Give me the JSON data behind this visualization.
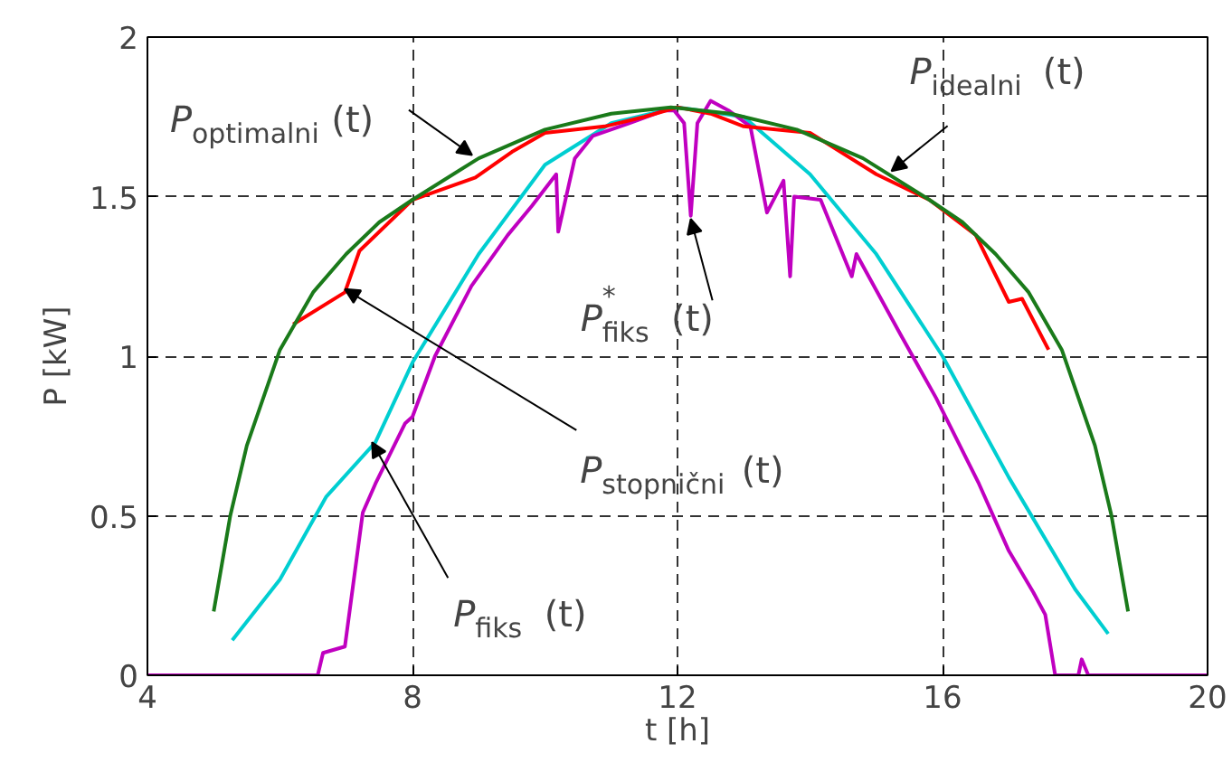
{
  "chart_data": {
    "type": "line",
    "xlabel": "t [h]",
    "ylabel": "P [kW]",
    "xlim": [
      4,
      20
    ],
    "ylim": [
      0,
      2
    ],
    "xticks": [
      4,
      8,
      12,
      16,
      20
    ],
    "yticks": [
      0,
      0.5,
      1,
      1.5,
      2
    ],
    "grid": true,
    "marker": "none",
    "line_style": "solid",
    "series": [
      {
        "color": "#00ced1",
        "x": [
          5.28,
          6.0,
          6.7,
          7.44,
          8.0,
          9.0,
          10.0,
          11.0,
          12.0,
          13.0,
          14.0,
          15.0,
          16.0,
          17.0,
          18.0,
          18.5
        ],
        "values": [
          0.11,
          0.3,
          0.56,
          0.73,
          0.98,
          1.32,
          1.6,
          1.73,
          1.78,
          1.75,
          1.57,
          1.32,
          1.0,
          0.62,
          0.27,
          0.13
        ]
      },
      {
        "color": "#c000c0",
        "x": [
          4.0,
          6.57,
          6.65,
          6.98,
          7.25,
          7.44,
          7.89,
          8.0,
          8.34,
          8.89,
          9.44,
          9.8,
          10.17,
          10.2,
          10.45,
          10.72,
          11.27,
          11.8,
          11.95,
          12.1,
          12.2,
          12.3,
          12.5,
          12.77,
          13.1,
          13.35,
          13.6,
          13.7,
          13.76,
          14.16,
          14.63,
          14.7,
          15.36,
          15.9,
          16.55,
          17.0,
          17.37,
          17.55,
          17.7,
          18.05,
          18.1,
          18.2,
          20.0
        ],
        "values": [
          0,
          0,
          0.07,
          0.09,
          0.51,
          0.6,
          0.79,
          0.81,
          1.0,
          1.22,
          1.38,
          1.47,
          1.57,
          1.39,
          1.62,
          1.69,
          1.73,
          1.77,
          1.77,
          1.73,
          1.44,
          1.73,
          1.8,
          1.77,
          1.72,
          1.45,
          1.55,
          1.25,
          1.5,
          1.49,
          1.25,
          1.32,
          1.07,
          0.87,
          0.6,
          0.39,
          0.26,
          0.19,
          0,
          0,
          0.05,
          0,
          0
        ]
      },
      {
        "color": "#ff0000",
        "x": [
          6.2,
          6.98,
          7.2,
          8.0,
          8.95,
          9.5,
          10.0,
          10.9,
          11.5,
          12.0,
          12.5,
          13.0,
          14.0,
          15.0,
          15.8,
          16.5,
          17.0,
          17.2,
          17.6
        ],
        "values": [
          1.1,
          1.2,
          1.33,
          1.49,
          1.56,
          1.64,
          1.7,
          1.72,
          1.75,
          1.78,
          1.76,
          1.72,
          1.7,
          1.57,
          1.49,
          1.38,
          1.17,
          1.18,
          1.02
        ]
      },
      {
        "color": "#1a7a1a",
        "x": [
          5.0,
          5.25,
          5.5,
          6.0,
          6.5,
          7.0,
          7.5,
          8.0,
          9.0,
          10.0,
          11.0,
          11.9,
          12.8,
          13.8,
          14.8,
          15.8,
          16.3,
          16.8,
          17.3,
          17.8,
          18.3,
          18.55,
          18.8
        ],
        "values": [
          0.2,
          0.5,
          0.72,
          1.02,
          1.2,
          1.32,
          1.42,
          1.49,
          1.62,
          1.71,
          1.76,
          1.78,
          1.76,
          1.71,
          1.62,
          1.49,
          1.42,
          1.32,
          1.2,
          1.02,
          0.72,
          0.5,
          0.2
        ]
      }
    ],
    "annotations": [
      {
        "text": "P$_{optimalni}$ (t)",
        "x": 8.9,
        "y": 1.63
      },
      {
        "text": "P$_{idealni}$ (t)",
        "x": 15.23,
        "y": 1.58
      },
      {
        "text": "P$^{*}$$_{fiks}$ (t)",
        "x": 12.2,
        "y": 1.43
      },
      {
        "text": "P$_{stopnični}$ (t)",
        "x": 6.98,
        "y": 1.21
      },
      {
        "text": "P$_{fiks}$ (t)",
        "x": 7.39,
        "y": 0.73
      }
    ]
  }
}
